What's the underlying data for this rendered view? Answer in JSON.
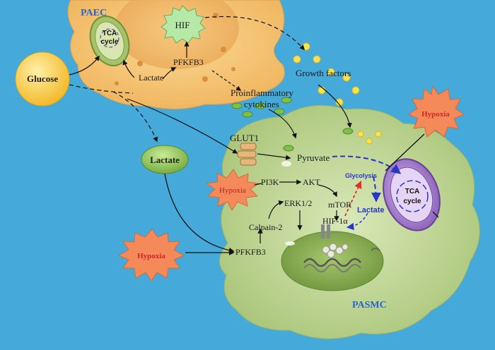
{
  "labels": {
    "paec": "PAEC",
    "pasmc": "PASMC",
    "hif": "HIF",
    "tca_small": "TCA",
    "tca_small2": "cycle",
    "pfkfb3_top": "PFKFB3",
    "lactate_top": "Lactate",
    "glucose": "Glucose",
    "lactate_big": "Lactate",
    "growth_factors": "Growth factors",
    "proinflammatory": "Proinflammatory",
    "cytokines": "cytokines",
    "glut1": "GLUT1",
    "pyruvate": "Pyruvate",
    "hypoxia_right": "Hypoxia",
    "hypoxia_mid": "Hypoxia",
    "hypoxia_bottom": "Hypoxia",
    "pi3k": "PI3K",
    "akt": "AKT",
    "mtor": "mTOR",
    "erk": "ERK1/2",
    "calpain": "Calpain-2",
    "pfkfb3_bottom": "PFKFB3",
    "hif1a": "HIF-1α",
    "glycolysis": "Glycolysis",
    "lactate_inner": "Lactate",
    "tca_big": "TCA",
    "tca_big2": "cycle"
  },
  "colors": {
    "background": "#45a9d9",
    "paec_cell": "#f7c873",
    "pasmc_cell": "#c6dca0",
    "nucleus": "#8fb35a",
    "mitochondrion": "#b48ad6",
    "hypoxia_burst": "#f08a54",
    "glucose": "#fbcf46",
    "lactate_node": "#8fc75a",
    "accent_blue": "#2a36c8",
    "accent_red": "#e0302a"
  }
}
